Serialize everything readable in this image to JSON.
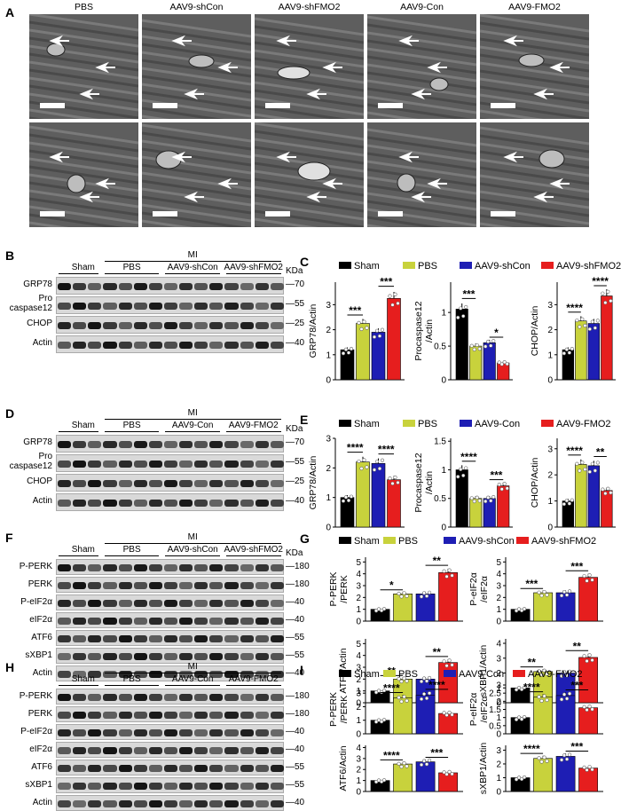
{
  "panels": {
    "A": {
      "label": "A",
      "headers": [
        "PBS",
        "AAV9-shCon",
        "AAV9-shFMO2",
        "AAV9-Con",
        "AAV9-FMO2"
      ]
    },
    "B": {
      "label": "B",
      "group_sham": "Sham",
      "group_mi": "MI",
      "subgroups": [
        "PBS",
        "AAV9-shCon",
        "AAV9-shFMO2"
      ],
      "kda": "KDa",
      "bands": [
        {
          "name": "GRP78",
          "marker": "70"
        },
        {
          "name": "Pro\ncaspase12",
          "marker": "55"
        },
        {
          "name": "CHOP",
          "marker": "25"
        },
        {
          "name": "Actin",
          "marker": "40"
        }
      ]
    },
    "D": {
      "label": "D",
      "group_sham": "Sham",
      "group_mi": "MI",
      "subgroups": [
        "PBS",
        "AAV9-Con",
        "AAV9-FMO2"
      ],
      "kda": "KDa",
      "bands": [
        {
          "name": "GRP78",
          "marker": "70"
        },
        {
          "name": "Pro\ncaspase12",
          "marker": "55"
        },
        {
          "name": "CHOP",
          "marker": "25"
        },
        {
          "name": "Actin",
          "marker": "40"
        }
      ]
    },
    "F": {
      "label": "F",
      "group_sham": "Sham",
      "group_mi": "MI",
      "subgroups": [
        "PBS",
        "AAV9-shCon",
        "AAV9-shFMO2"
      ],
      "kda": "KDa",
      "bands": [
        {
          "name": "P-PERK",
          "marker": "180"
        },
        {
          "name": "PERK",
          "marker": "180"
        },
        {
          "name": "P-eIF2α",
          "marker": "40"
        },
        {
          "name": "eIF2α",
          "marker": "40"
        },
        {
          "name": "ATF6",
          "marker": "55"
        },
        {
          "name": "sXBP1",
          "marker": "55"
        },
        {
          "name": "Actin",
          "marker": "40"
        }
      ]
    },
    "H": {
      "label": "H",
      "group_sham": "Sham",
      "group_mi": "MI",
      "subgroups": [
        "PBS",
        "AAV9-Con",
        "AAV9-FMO2"
      ],
      "kda": "",
      "bands": [
        {
          "name": "P-PERK",
          "marker": "180"
        },
        {
          "name": "PERK",
          "marker": "180"
        },
        {
          "name": "P-eIF2α",
          "marker": "40"
        },
        {
          "name": "eIF2α",
          "marker": "40"
        },
        {
          "name": "ATF6",
          "marker": "55"
        },
        {
          "name": "sXBP1",
          "marker": "55"
        },
        {
          "name": "Actin",
          "marker": "40"
        }
      ]
    }
  },
  "colors": {
    "sham": "#000000",
    "pbs": "#c8d23c",
    "ctrl": "#1e1eb4",
    "treat": "#e61e1e"
  },
  "chart_data": [
    {
      "panel": "C",
      "type": "bar",
      "legend": [
        "Sham",
        "PBS",
        "AAV9-shCon",
        "AAV9-shFMO2"
      ],
      "plots": [
        {
          "ylabel": "GRP78/Actin",
          "yticks": [
            0,
            1,
            2,
            3
          ],
          "ylim": [
            0,
            3.9
          ],
          "values": [
            1.2,
            2.25,
            1.9,
            3.25
          ],
          "sig": [
            {
              "a": 0,
              "b": 1,
              "text": "***"
            },
            {
              "a": 2,
              "b": 3,
              "text": "***"
            }
          ]
        },
        {
          "ylabel": "Procaspase12\n/Actin",
          "yticks": [
            0,
            0.5,
            1.0
          ],
          "ylim": [
            0,
            1.45
          ],
          "values": [
            1.05,
            0.5,
            0.55,
            0.25
          ],
          "sig": [
            {
              "a": 0,
              "b": 1,
              "text": "***"
            },
            {
              "a": 2,
              "b": 3,
              "text": "*"
            }
          ]
        },
        {
          "ylabel": "CHOP/Actin",
          "yticks": [
            0,
            1,
            2,
            3
          ],
          "ylim": [
            0,
            3.9
          ],
          "values": [
            1.2,
            2.35,
            2.25,
            3.35
          ],
          "sig": [
            {
              "a": 0,
              "b": 1,
              "text": "****"
            },
            {
              "a": 2,
              "b": 3,
              "text": "****"
            }
          ]
        }
      ]
    },
    {
      "panel": "E",
      "type": "bar",
      "legend": [
        "Sham",
        "PBS",
        "AAV9-Con",
        "AAV9-FMO2"
      ],
      "plots": [
        {
          "ylabel": "GRP78/Actin",
          "yticks": [
            0,
            1,
            2,
            3
          ],
          "ylim": [
            0,
            3.0
          ],
          "values": [
            1.0,
            2.2,
            2.15,
            1.6
          ],
          "sig": [
            {
              "a": 0,
              "b": 1,
              "text": "****"
            },
            {
              "a": 2,
              "b": 3,
              "text": "****"
            }
          ]
        },
        {
          "ylabel": "Procaspase12\n/Actin",
          "yticks": [
            0,
            0.5,
            1.0,
            1.5
          ],
          "ylim": [
            0,
            1.55
          ],
          "values": [
            1.0,
            0.5,
            0.5,
            0.72
          ],
          "sig": [
            {
              "a": 0,
              "b": 1,
              "text": "****"
            },
            {
              "a": 2,
              "b": 3,
              "text": "***"
            }
          ]
        },
        {
          "ylabel": "CHOP/Actin",
          "yticks": [
            0,
            1,
            2,
            3
          ],
          "ylim": [
            0,
            3.4
          ],
          "values": [
            1.0,
            2.4,
            2.35,
            1.4
          ],
          "sig": [
            {
              "a": 0,
              "b": 1,
              "text": "****"
            },
            {
              "a": 2,
              "b": 3,
              "text": "**"
            }
          ]
        }
      ]
    },
    {
      "panel": "G",
      "type": "bar",
      "legend": [
        "Sham",
        "PBS",
        "AAV9-shCon",
        "AAV9-shFMO2"
      ],
      "plots": [
        {
          "ylabel": "P-PERK\n/PERK",
          "yticks": [
            0,
            1,
            2,
            3,
            4,
            5
          ],
          "ylim": [
            0,
            5.4
          ],
          "values": [
            1.0,
            2.3,
            2.3,
            4.1
          ],
          "sig": [
            {
              "a": 0,
              "b": 1,
              "text": "*"
            },
            {
              "a": 2,
              "b": 3,
              "text": "**"
            }
          ]
        },
        {
          "ylabel": "P-eIF2α\n/eIF2α",
          "yticks": [
            0,
            1,
            2,
            3,
            4,
            5
          ],
          "ylim": [
            0,
            5.4
          ],
          "values": [
            1.0,
            2.4,
            2.4,
            3.7
          ],
          "sig": [
            {
              "a": 0,
              "b": 1,
              "text": "***"
            },
            {
              "a": 2,
              "b": 3,
              "text": "***"
            }
          ]
        },
        {
          "ylabel": "ATF6/Actin",
          "yticks": [
            0,
            1,
            2,
            3,
            4,
            5
          ],
          "ylim": [
            0,
            5.4
          ],
          "values": [
            1.0,
            2.0,
            2.0,
            3.4
          ],
          "sig": [
            {
              "a": 0,
              "b": 1,
              "text": "**"
            },
            {
              "a": 2,
              "b": 3,
              "text": "**"
            }
          ]
        },
        {
          "ylabel": "sXBP1/Actin",
          "yticks": [
            0,
            1,
            2,
            3,
            4
          ],
          "ylim": [
            0,
            4.3
          ],
          "values": [
            1.0,
            2.1,
            2.0,
            3.05
          ],
          "sig": [
            {
              "a": 0,
              "b": 1,
              "text": "**"
            },
            {
              "a": 2,
              "b": 3,
              "text": "**"
            }
          ]
        }
      ]
    },
    {
      "panel": "I",
      "type": "bar",
      "legend": [
        "Sham",
        "PBS",
        "AAV9-Con",
        "AAV9-FMO2"
      ],
      "plots": [
        {
          "ylabel": "P-PERK\n/PERK",
          "yticks": [
            0,
            1,
            2,
            3
          ],
          "ylim": [
            0,
            3.6
          ],
          "values": [
            1.0,
            2.65,
            2.85,
            1.5
          ],
          "sig": [
            {
              "a": 0,
              "b": 1,
              "text": "****"
            },
            {
              "a": 2,
              "b": 3,
              "text": "****"
            }
          ]
        },
        {
          "ylabel": "P-eIF2α\n/eIF2α",
          "yticks": [
            0.0,
            0.5,
            1.0,
            1.5,
            2.0,
            2.5,
            3.0
          ],
          "ylim": [
            0,
            3.0
          ],
          "values": [
            1.0,
            2.25,
            2.35,
            1.6
          ],
          "sig": [
            {
              "a": 0,
              "b": 1,
              "text": "****"
            },
            {
              "a": 2,
              "b": 3,
              "text": "***"
            }
          ]
        },
        {
          "ylabel": "ATF6/Actin",
          "yticks": [
            0,
            1,
            2,
            3,
            4
          ],
          "ylim": [
            0,
            4.2
          ],
          "values": [
            1.0,
            2.5,
            2.7,
            1.7
          ],
          "sig": [
            {
              "a": 0,
              "b": 1,
              "text": "****"
            },
            {
              "a": 2,
              "b": 3,
              "text": "***"
            }
          ]
        },
        {
          "ylabel": "sXBP1/Actin",
          "yticks": [
            0,
            1,
            2,
            3
          ],
          "ylim": [
            0,
            3.35
          ],
          "values": [
            1.0,
            2.4,
            2.55,
            1.7
          ],
          "sig": [
            {
              "a": 0,
              "b": 1,
              "text": "****"
            },
            {
              "a": 2,
              "b": 3,
              "text": "***"
            }
          ]
        }
      ]
    }
  ]
}
